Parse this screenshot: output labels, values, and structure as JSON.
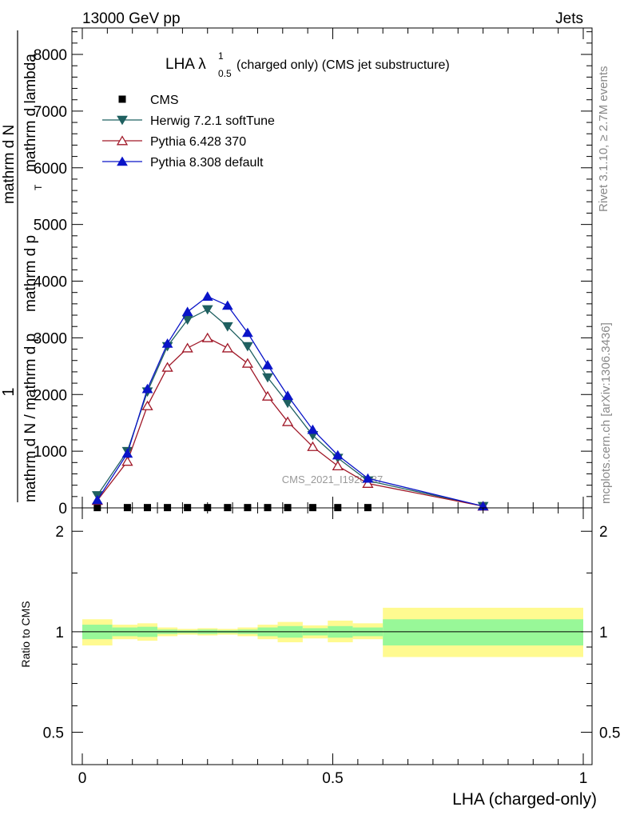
{
  "header": {
    "left": "13000 GeV pp",
    "right": "Jets"
  },
  "side_text": {
    "rivet": "Rivet 3.1.10, ≥ 2.7M events",
    "mcplots": "mcplots.cern.ch [arXiv:1306.3436]"
  },
  "watermark": "CMS_2021_I1920187",
  "chart_data": [
    {
      "type": "line",
      "title_main": "LHA λ",
      "title_sup": "1",
      "title_sub": "0.5",
      "title_rest": " (charged only) (CMS jet substructure)",
      "ylabel_num": "1",
      "ylabel_den": "mathrm d N / mathrm d p",
      "ylabel_rest_a": "mathrm d N",
      "ylabel_rest_b": "mathrm d p",
      "ylabel_rest_c": "mathrm d lambda",
      "ylabel_sub": "T",
      "xlim": [
        0,
        1
      ],
      "ylim": [
        0,
        8500
      ],
      "yticks": [
        0,
        1000,
        2000,
        3000,
        4000,
        5000,
        6000,
        7000,
        8000
      ],
      "ytick_labels": [
        "0",
        "1000",
        "2000",
        "3000",
        "4000",
        "5000",
        "6000",
        "7000",
        "8000"
      ],
      "x": [
        0.03,
        0.09,
        0.13,
        0.17,
        0.21,
        0.25,
        0.29,
        0.33,
        0.37,
        0.41,
        0.46,
        0.51,
        0.57,
        0.8
      ],
      "series": [
        {
          "name": "CMS",
          "color": "#000000",
          "marker": "square",
          "values": [
            5,
            5,
            5,
            5,
            5,
            5,
            5,
            5,
            5,
            5,
            5,
            5,
            5,
            5
          ]
        },
        {
          "name": "Herwig 7.2.1 softTune",
          "color": "#1f6060",
          "marker": "triangle-down",
          "values": [
            220,
            1000,
            2050,
            2850,
            3320,
            3500,
            3200,
            2850,
            2300,
            1850,
            1280,
            880,
            480,
            30
          ]
        },
        {
          "name": "Pythia 6.428 370",
          "color": "#a01828",
          "marker": "triangle-up-open",
          "values": [
            130,
            820,
            1800,
            2480,
            2820,
            3000,
            2820,
            2550,
            1970,
            1520,
            1080,
            740,
            430,
            30
          ]
        },
        {
          "name": "Pythia 8.308 default",
          "color": "#0a14c8",
          "marker": "triangle-up",
          "values": [
            140,
            960,
            2100,
            2900,
            3460,
            3730,
            3570,
            3090,
            2520,
            1980,
            1380,
            930,
            520,
            30
          ]
        }
      ]
    },
    {
      "type": "area",
      "ylabel": "Ratio to CMS",
      "xlabel": "LHA (charged-only)",
      "xlim": [
        0,
        1
      ],
      "ylim": [
        0.4,
        2.35
      ],
      "log_y": true,
      "yticks": [
        0.5,
        1,
        2
      ],
      "ytick_labels": [
        "0.5",
        "1",
        "2"
      ],
      "xticks": [
        0,
        0.5,
        1
      ],
      "xtick_labels": [
        "0",
        "0.5",
        "1"
      ],
      "bands": [
        {
          "x0": 0.0,
          "x1": 0.06,
          "inner": [
            0.95,
            1.05
          ],
          "outer": [
            0.91,
            1.09
          ]
        },
        {
          "x0": 0.06,
          "x1": 0.11,
          "inner": [
            0.97,
            1.03
          ],
          "outer": [
            0.95,
            1.05
          ]
        },
        {
          "x0": 0.11,
          "x1": 0.15,
          "inner": [
            0.965,
            1.035
          ],
          "outer": [
            0.94,
            1.06
          ]
        },
        {
          "x0": 0.15,
          "x1": 0.19,
          "inner": [
            0.985,
            1.015
          ],
          "outer": [
            0.97,
            1.03
          ]
        },
        {
          "x0": 0.19,
          "x1": 0.23,
          "inner": [
            0.99,
            1.01
          ],
          "outer": [
            0.98,
            1.02
          ]
        },
        {
          "x0": 0.23,
          "x1": 0.27,
          "inner": [
            0.985,
            1.015
          ],
          "outer": [
            0.975,
            1.025
          ]
        },
        {
          "x0": 0.27,
          "x1": 0.31,
          "inner": [
            0.99,
            1.01
          ],
          "outer": [
            0.98,
            1.02
          ]
        },
        {
          "x0": 0.31,
          "x1": 0.35,
          "inner": [
            0.985,
            1.015
          ],
          "outer": [
            0.97,
            1.03
          ]
        },
        {
          "x0": 0.35,
          "x1": 0.39,
          "inner": [
            0.97,
            1.03
          ],
          "outer": [
            0.95,
            1.05
          ]
        },
        {
          "x0": 0.39,
          "x1": 0.44,
          "inner": [
            0.96,
            1.04
          ],
          "outer": [
            0.93,
            1.07
          ]
        },
        {
          "x0": 0.44,
          "x1": 0.49,
          "inner": [
            0.975,
            1.025
          ],
          "outer": [
            0.955,
            1.045
          ]
        },
        {
          "x0": 0.49,
          "x1": 0.54,
          "inner": [
            0.96,
            1.04
          ],
          "outer": [
            0.93,
            1.08
          ]
        },
        {
          "x0": 0.54,
          "x1": 0.6,
          "inner": [
            0.97,
            1.03
          ],
          "outer": [
            0.95,
            1.06
          ]
        },
        {
          "x0": 0.6,
          "x1": 1.0,
          "inner": [
            0.91,
            1.09
          ],
          "outer": [
            0.84,
            1.18
          ]
        }
      ],
      "band_colors": {
        "inner": "#98f898",
        "outer": "#fffa90"
      }
    }
  ]
}
